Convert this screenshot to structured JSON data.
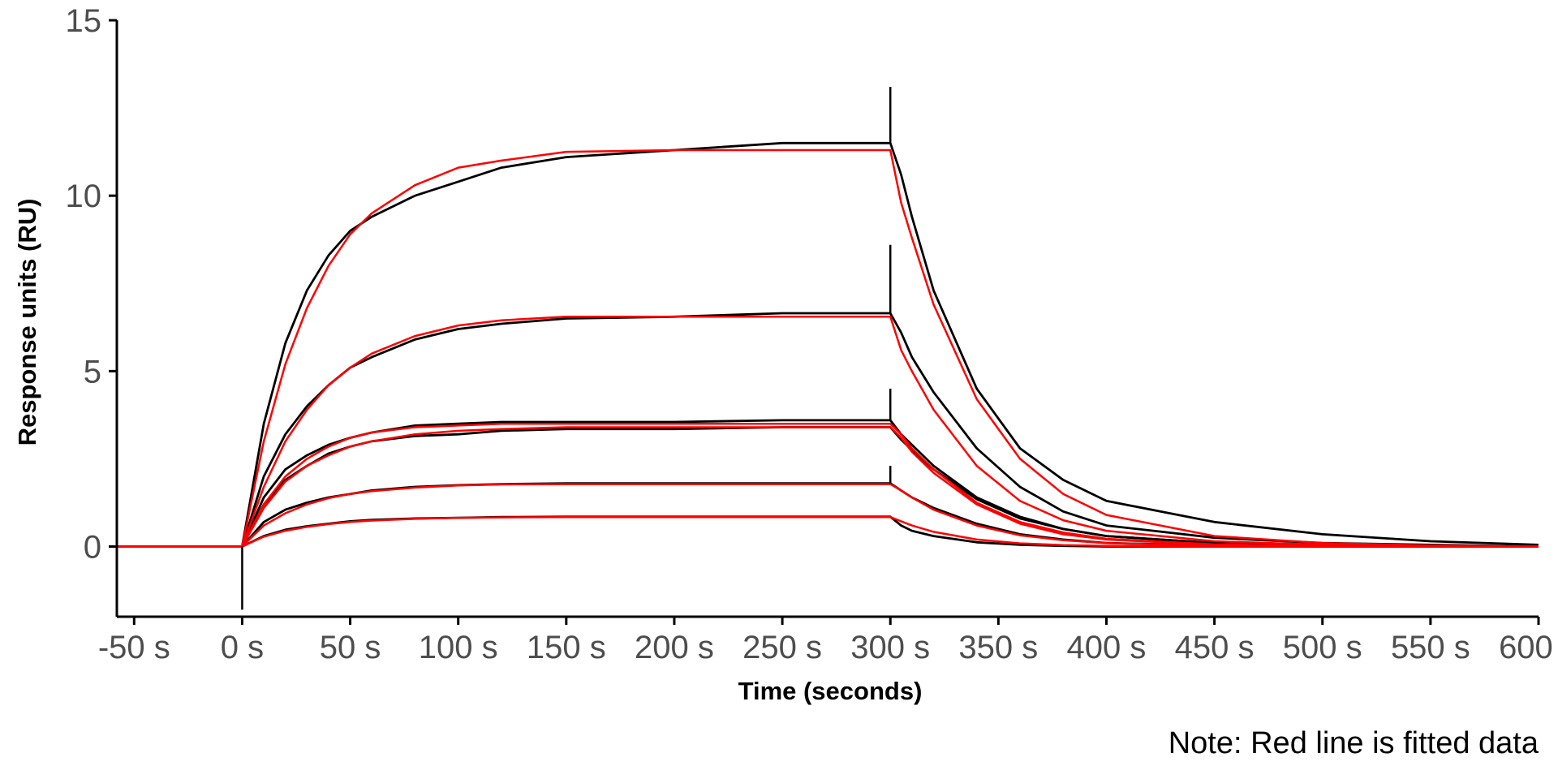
{
  "chart_data": {
    "type": "line",
    "title": "",
    "xlabel": "Time (seconds)",
    "ylabel": "Response units (RU)",
    "xlim": [
      -58,
      600
    ],
    "ylim": [
      -2,
      15
    ],
    "x_ticks": [
      -50,
      0,
      50,
      100,
      150,
      200,
      250,
      300,
      350,
      400,
      450,
      500,
      550,
      600
    ],
    "x_tick_labels": [
      "-50 s",
      "0 s",
      "50 s",
      "100 s",
      "150 s",
      "200 s",
      "250 s",
      "300 s",
      "350 s",
      "400 s",
      "450 s",
      "500 s",
      "550 s",
      "600 s"
    ],
    "y_ticks": [
      0,
      5,
      10,
      15
    ],
    "y_tick_labels": [
      "0",
      "5",
      "10",
      "15"
    ],
    "grid": false,
    "note": "Note: Red line is fitted data",
    "colors": {
      "measured": "#000000",
      "fitted": "#ff0000",
      "tick_text": "#4d4d4d"
    },
    "injection_start": 0,
    "injection_end": 300,
    "series": [
      {
        "role": "measured",
        "color": "#000000",
        "x": [
          -58,
          0,
          10,
          20,
          30,
          40,
          50,
          60,
          80,
          100,
          120,
          150,
          200,
          250,
          300,
          305,
          310,
          320,
          340,
          360,
          380,
          400,
          450,
          500,
          550,
          600
        ],
        "y": [
          0,
          0,
          3.5,
          5.8,
          7.3,
          8.3,
          9.0,
          9.4,
          10.0,
          10.4,
          10.8,
          11.1,
          11.3,
          11.5,
          11.5,
          10.6,
          9.4,
          7.3,
          4.5,
          2.8,
          1.9,
          1.3,
          0.7,
          0.35,
          0.15,
          0.05
        ]
      },
      {
        "role": "fitted",
        "color": "#ff0000",
        "x": [
          -58,
          0,
          10,
          20,
          30,
          40,
          50,
          60,
          80,
          100,
          120,
          150,
          200,
          250,
          300,
          305,
          310,
          320,
          340,
          360,
          380,
          400,
          450,
          500,
          550,
          600
        ],
        "y": [
          0,
          0,
          3.0,
          5.2,
          6.8,
          8.0,
          8.9,
          9.5,
          10.3,
          10.8,
          11.0,
          11.25,
          11.3,
          11.3,
          11.3,
          9.8,
          8.8,
          6.9,
          4.2,
          2.5,
          1.5,
          0.9,
          0.3,
          0.1,
          0.03,
          0.0
        ]
      },
      {
        "role": "measured",
        "color": "#000000",
        "x": [
          -58,
          0,
          10,
          20,
          30,
          40,
          50,
          60,
          80,
          100,
          120,
          150,
          200,
          250,
          300,
          305,
          310,
          320,
          340,
          360,
          380,
          400,
          450,
          500,
          550,
          600
        ],
        "y": [
          0,
          0,
          2.0,
          3.2,
          4.0,
          4.6,
          5.1,
          5.4,
          5.9,
          6.2,
          6.35,
          6.5,
          6.55,
          6.65,
          6.65,
          6.1,
          5.4,
          4.4,
          2.8,
          1.7,
          1.0,
          0.6,
          0.25,
          0.1,
          0.05,
          0.0
        ]
      },
      {
        "role": "fitted",
        "color": "#ff0000",
        "x": [
          -58,
          0,
          10,
          20,
          30,
          40,
          50,
          60,
          80,
          100,
          120,
          150,
          200,
          250,
          300,
          305,
          310,
          320,
          340,
          360,
          380,
          400,
          450,
          500,
          550,
          600
        ],
        "y": [
          0,
          0,
          1.7,
          3.0,
          3.9,
          4.6,
          5.1,
          5.5,
          6.0,
          6.3,
          6.45,
          6.55,
          6.55,
          6.55,
          6.55,
          5.6,
          5.0,
          3.9,
          2.3,
          1.3,
          0.75,
          0.45,
          0.15,
          0.05,
          0.02,
          0.0
        ]
      },
      {
        "role": "measured",
        "color": "#000000",
        "x": [
          -58,
          0,
          10,
          20,
          30,
          40,
          50,
          60,
          80,
          100,
          120,
          150,
          200,
          250,
          300,
          305,
          310,
          320,
          340,
          360,
          380,
          400,
          450,
          500,
          550,
          600
        ],
        "y": [
          0,
          0,
          1.4,
          2.2,
          2.6,
          2.9,
          3.1,
          3.25,
          3.45,
          3.5,
          3.55,
          3.55,
          3.55,
          3.6,
          3.6,
          3.2,
          2.9,
          2.3,
          1.4,
          0.85,
          0.5,
          0.3,
          0.1,
          0.05,
          0.0,
          0.0
        ]
      },
      {
        "role": "fitted",
        "color": "#ff0000",
        "x": [
          -58,
          0,
          10,
          20,
          30,
          40,
          50,
          60,
          80,
          100,
          120,
          150,
          200,
          250,
          300,
          305,
          310,
          320,
          340,
          360,
          380,
          400,
          450,
          500,
          550,
          600
        ],
        "y": [
          0,
          0,
          1.2,
          2.0,
          2.5,
          2.85,
          3.1,
          3.25,
          3.4,
          3.45,
          3.5,
          3.5,
          3.5,
          3.5,
          3.5,
          3.2,
          2.8,
          2.2,
          1.25,
          0.7,
          0.4,
          0.22,
          0.06,
          0.02,
          0.0,
          0.0
        ]
      },
      {
        "role": "measured",
        "color": "#000000",
        "x": [
          -58,
          0,
          10,
          20,
          30,
          40,
          50,
          60,
          80,
          100,
          120,
          150,
          200,
          250,
          300,
          305,
          310,
          320,
          340,
          360,
          380,
          400,
          450,
          500,
          550,
          600
        ],
        "y": [
          0,
          0,
          1.2,
          1.9,
          2.3,
          2.65,
          2.85,
          3.0,
          3.15,
          3.2,
          3.3,
          3.35,
          3.35,
          3.4,
          3.4,
          3.05,
          2.75,
          2.2,
          1.35,
          0.8,
          0.5,
          0.3,
          0.1,
          0.05,
          0.0,
          0.0
        ]
      },
      {
        "role": "fitted",
        "color": "#ff0000",
        "x": [
          -58,
          0,
          10,
          20,
          30,
          40,
          50,
          60,
          80,
          100,
          120,
          150,
          200,
          250,
          300,
          305,
          310,
          320,
          340,
          360,
          380,
          400,
          450,
          500,
          550,
          600
        ],
        "y": [
          0,
          0,
          1.1,
          1.85,
          2.3,
          2.6,
          2.85,
          3.0,
          3.2,
          3.3,
          3.35,
          3.4,
          3.4,
          3.4,
          3.4,
          3.1,
          2.7,
          2.1,
          1.2,
          0.65,
          0.35,
          0.2,
          0.05,
          0.02,
          0.0,
          0.0
        ]
      },
      {
        "role": "measured",
        "color": "#000000",
        "x": [
          -58,
          0,
          10,
          20,
          30,
          40,
          50,
          60,
          80,
          100,
          120,
          150,
          200,
          250,
          300,
          305,
          310,
          320,
          340,
          360,
          380,
          400,
          450,
          500,
          550,
          600
        ],
        "y": [
          0,
          0,
          0.7,
          1.05,
          1.25,
          1.4,
          1.5,
          1.6,
          1.7,
          1.75,
          1.78,
          1.8,
          1.8,
          1.8,
          1.8,
          1.6,
          1.4,
          1.1,
          0.65,
          0.35,
          0.2,
          0.1,
          0.03,
          0.0,
          0.0,
          0.0
        ]
      },
      {
        "role": "fitted",
        "color": "#ff0000",
        "x": [
          -58,
          0,
          10,
          20,
          30,
          40,
          50,
          60,
          80,
          100,
          120,
          150,
          200,
          250,
          300,
          305,
          310,
          320,
          340,
          360,
          380,
          400,
          450,
          500,
          550,
          600
        ],
        "y": [
          0,
          0,
          0.6,
          0.95,
          1.2,
          1.38,
          1.5,
          1.58,
          1.68,
          1.74,
          1.77,
          1.78,
          1.78,
          1.78,
          1.78,
          1.6,
          1.4,
          1.05,
          0.6,
          0.32,
          0.18,
          0.1,
          0.02,
          0.0,
          0.0,
          0.0
        ]
      },
      {
        "role": "measured",
        "color": "#000000",
        "x": [
          -58,
          0,
          10,
          20,
          30,
          40,
          50,
          60,
          80,
          100,
          120,
          150,
          200,
          250,
          300,
          305,
          310,
          320,
          340,
          360,
          380,
          400,
          450,
          500,
          550,
          600
        ],
        "y": [
          0,
          0,
          0.3,
          0.48,
          0.58,
          0.65,
          0.72,
          0.76,
          0.8,
          0.82,
          0.84,
          0.85,
          0.85,
          0.85,
          0.85,
          0.6,
          0.45,
          0.3,
          0.12,
          0.05,
          0.02,
          0.0,
          0.0,
          0.0,
          0.0,
          0.0
        ]
      },
      {
        "role": "fitted",
        "color": "#ff0000",
        "x": [
          -58,
          0,
          10,
          20,
          30,
          40,
          50,
          60,
          80,
          100,
          120,
          150,
          200,
          250,
          300,
          305,
          310,
          320,
          340,
          360,
          380,
          400,
          450,
          500,
          550,
          600
        ],
        "y": [
          0,
          0,
          0.28,
          0.45,
          0.56,
          0.64,
          0.7,
          0.74,
          0.79,
          0.82,
          0.83,
          0.84,
          0.84,
          0.84,
          0.84,
          0.72,
          0.6,
          0.42,
          0.2,
          0.09,
          0.04,
          0.02,
          0.0,
          0.0,
          0.0,
          0.0
        ]
      }
    ],
    "spikes": [
      {
        "x": 0,
        "y_from": 0,
        "y_to": -1.8
      },
      {
        "x": 300,
        "y_from": 11.5,
        "y_to": 13.1
      },
      {
        "x": 300,
        "y_from": 6.65,
        "y_to": 8.6
      },
      {
        "x": 300,
        "y_from": 3.6,
        "y_to": 4.5
      },
      {
        "x": 300,
        "y_from": 1.8,
        "y_to": 2.3
      }
    ]
  }
}
